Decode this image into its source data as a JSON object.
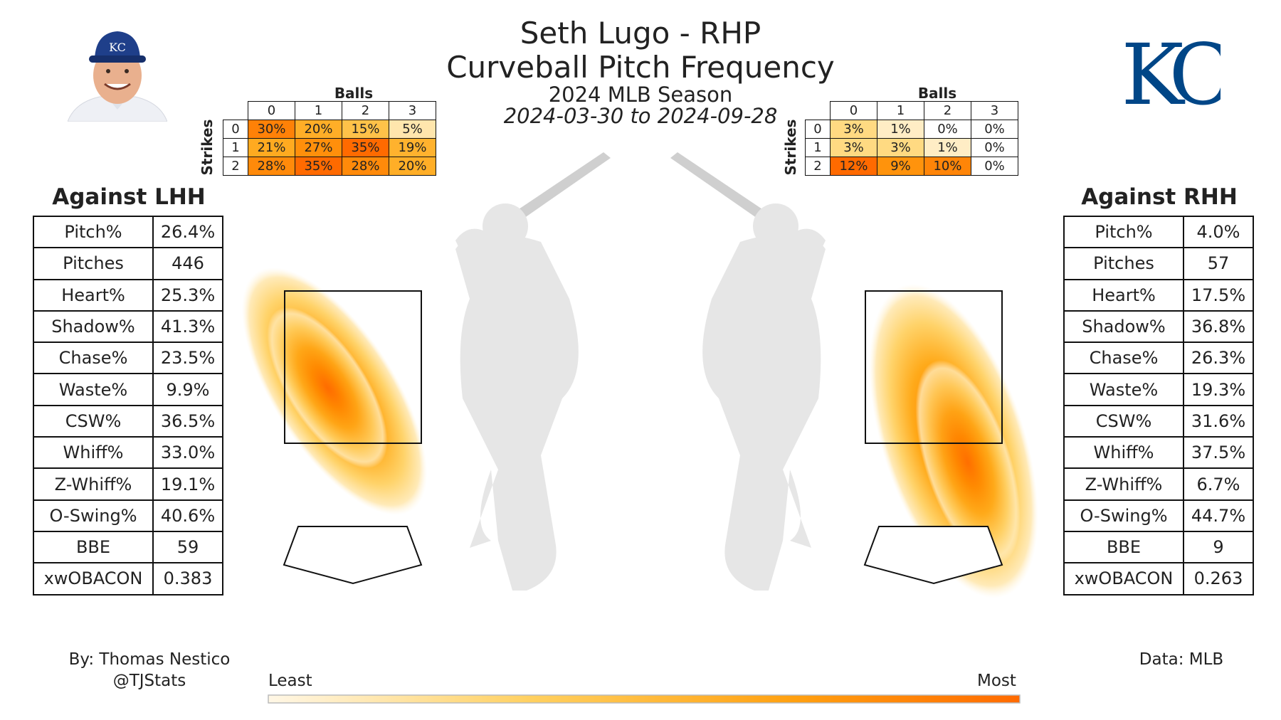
{
  "header": {
    "title": "Seth Lugo - RHP",
    "subtitle": "Curveball Pitch Frequency",
    "season": "2024 MLB Season",
    "date_range": "2024-03-30 to 2024-09-28"
  },
  "colors": {
    "accent": "#004687",
    "heat_low": "#fff3dc",
    "heat_high": "#ff6a00",
    "silhouette": "#e6e6e6"
  },
  "icons": {
    "headshot": "player-headshot",
    "logo": "kc-royals-logo"
  },
  "credits": {
    "author": "By: Thomas Nestico",
    "handle": "@TJStats",
    "source": "Data: MLB"
  },
  "colorbar": {
    "least": "Least",
    "most": "Most"
  },
  "lhh": {
    "heading": "Against LHH",
    "stats": [
      {
        "label": "Pitch%",
        "value": "26.4%"
      },
      {
        "label": "Pitches",
        "value": "446"
      },
      {
        "label": "Heart%",
        "value": "25.3%"
      },
      {
        "label": "Shadow%",
        "value": "41.3%"
      },
      {
        "label": "Chase%",
        "value": "23.5%"
      },
      {
        "label": "Waste%",
        "value": "9.9%"
      },
      {
        "label": "CSW%",
        "value": "36.5%"
      },
      {
        "label": "Whiff%",
        "value": "33.0%"
      },
      {
        "label": "Z-Whiff%",
        "value": "19.1%"
      },
      {
        "label": "O-Swing%",
        "value": "40.6%"
      },
      {
        "label": "BBE",
        "value": "59"
      },
      {
        "label": "xwOBACON",
        "value": "0.383"
      }
    ],
    "count_matrix": {
      "balls_label": "Balls",
      "strikes_label": "Strikes",
      "balls": [
        "0",
        "1",
        "2",
        "3"
      ],
      "strikes": [
        "0",
        "1",
        "2"
      ],
      "cells": [
        [
          "30%",
          "20%",
          "15%",
          "5%"
        ],
        [
          "21%",
          "27%",
          "35%",
          "19%"
        ],
        [
          "28%",
          "35%",
          "28%",
          "20%"
        ]
      ],
      "values": [
        [
          30,
          20,
          15,
          5
        ],
        [
          21,
          27,
          35,
          19
        ],
        [
          28,
          35,
          28,
          20
        ]
      ]
    }
  },
  "rhh": {
    "heading": "Against RHH",
    "stats": [
      {
        "label": "Pitch%",
        "value": "4.0%"
      },
      {
        "label": "Pitches",
        "value": "57"
      },
      {
        "label": "Heart%",
        "value": "17.5%"
      },
      {
        "label": "Shadow%",
        "value": "36.8%"
      },
      {
        "label": "Chase%",
        "value": "26.3%"
      },
      {
        "label": "Waste%",
        "value": "19.3%"
      },
      {
        "label": "CSW%",
        "value": "31.6%"
      },
      {
        "label": "Whiff%",
        "value": "37.5%"
      },
      {
        "label": "Z-Whiff%",
        "value": "6.7%"
      },
      {
        "label": "O-Swing%",
        "value": "44.7%"
      },
      {
        "label": "BBE",
        "value": "9"
      },
      {
        "label": "xwOBACON",
        "value": "0.263"
      }
    ],
    "count_matrix": {
      "balls_label": "Balls",
      "strikes_label": "Strikes",
      "balls": [
        "0",
        "1",
        "2",
        "3"
      ],
      "strikes": [
        "0",
        "1",
        "2"
      ],
      "cells": [
        [
          "3%",
          "1%",
          "0%",
          "0%"
        ],
        [
          "3%",
          "3%",
          "1%",
          "0%"
        ],
        [
          "12%",
          "9%",
          "10%",
          "0%"
        ]
      ],
      "values": [
        [
          3,
          1,
          0,
          0
        ],
        [
          3,
          3,
          1,
          0
        ],
        [
          12,
          9,
          10,
          0
        ]
      ]
    }
  },
  "chart_data": [
    {
      "type": "heatmap",
      "name": "lhh-count-frequency",
      "xlabel": "Balls",
      "ylabel": "Strikes",
      "categories_x": [
        "0",
        "1",
        "2",
        "3"
      ],
      "categories_y": [
        "0",
        "1",
        "2"
      ],
      "values": [
        [
          30,
          20,
          15,
          5
        ],
        [
          21,
          27,
          35,
          19
        ],
        [
          28,
          35,
          28,
          20
        ]
      ]
    },
    {
      "type": "heatmap",
      "name": "rhh-count-frequency",
      "xlabel": "Balls",
      "ylabel": "Strikes",
      "categories_x": [
        "0",
        "1",
        "2",
        "3"
      ],
      "categories_y": [
        "0",
        "1",
        "2"
      ],
      "values": [
        [
          3,
          1,
          0,
          0
        ],
        [
          3,
          3,
          1,
          0
        ],
        [
          12,
          9,
          10,
          0
        ]
      ]
    }
  ]
}
